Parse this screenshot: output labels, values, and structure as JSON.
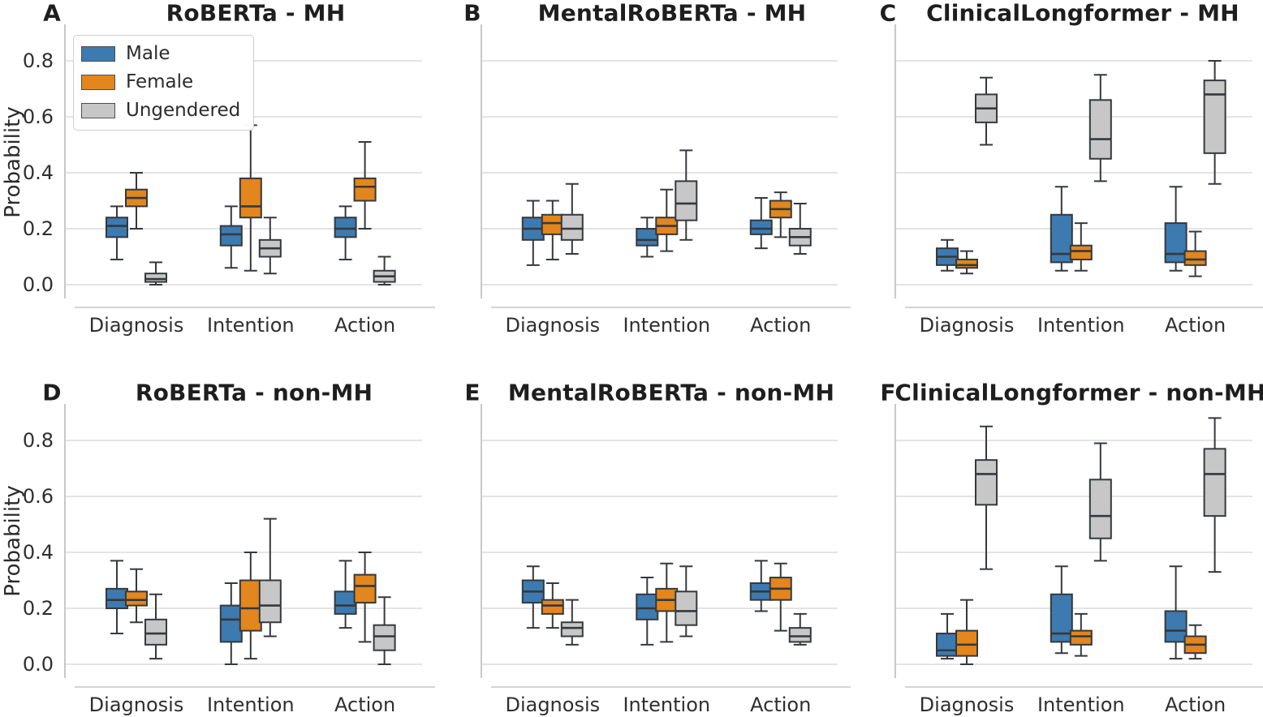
{
  "ylabel_text": "Probability",
  "legend": {
    "items": [
      {
        "label": "Male",
        "color": "#3d7ab0"
      },
      {
        "label": "Female",
        "color": "#e2861d"
      },
      {
        "label": "Ungendered",
        "color": "#c7c7c7"
      }
    ]
  },
  "chart_data": {
    "type": "boxplot-grid",
    "ylabel": "Probability",
    "categories": [
      "Diagnosis",
      "Intention",
      "Action"
    ],
    "groups": [
      "Male",
      "Female",
      "Ungendered"
    ],
    "group_colors": {
      "Male": "#3d7ab0",
      "Female": "#e2861d",
      "Ungendered": "#c7c7c7"
    },
    "style": {
      "box_edge": "#35393d",
      "grid": "#dcdcdc",
      "spine": "#c8c8c8",
      "axis_line": "#d4d4d4"
    },
    "yticks": [
      0.0,
      0.2,
      0.4,
      0.6,
      0.8
    ],
    "ytick_labels": [
      "0.0",
      "0.2",
      "0.4",
      "0.6",
      "0.8"
    ],
    "ylim": [
      -0.05,
      0.93
    ],
    "grid": true,
    "legend_position": "upper-left of panel A",
    "box_stats_format": [
      "whisker_low",
      "q1",
      "median",
      "q3",
      "whisker_high"
    ],
    "panels": [
      {
        "letter": "A",
        "title": "RoBERTa - MH",
        "show_yticklabels": true,
        "show_legend": true,
        "boxes": {
          "Diagnosis": {
            "Male": [
              0.09,
              0.17,
              0.21,
              0.24,
              0.28
            ],
            "Female": [
              0.2,
              0.28,
              0.31,
              0.34,
              0.4
            ],
            "Ungendered": [
              0.0,
              0.01,
              0.02,
              0.04,
              0.08
            ]
          },
          "Intention": {
            "Male": [
              0.06,
              0.14,
              0.18,
              0.21,
              0.28
            ],
            "Female": [
              0.05,
              0.24,
              0.28,
              0.38,
              0.57
            ],
            "Ungendered": [
              0.04,
              0.1,
              0.13,
              0.16,
              0.24
            ]
          },
          "Action": {
            "Male": [
              0.09,
              0.17,
              0.2,
              0.24,
              0.28
            ],
            "Female": [
              0.2,
              0.3,
              0.35,
              0.38,
              0.51
            ],
            "Ungendered": [
              0.0,
              0.01,
              0.03,
              0.05,
              0.1
            ]
          }
        }
      },
      {
        "letter": "B",
        "title": "MentalRoBERTa - MH",
        "show_yticklabels": false,
        "show_legend": false,
        "boxes": {
          "Diagnosis": {
            "Male": [
              0.07,
              0.16,
              0.2,
              0.24,
              0.3
            ],
            "Female": [
              0.09,
              0.18,
              0.22,
              0.25,
              0.3
            ],
            "Ungendered": [
              0.11,
              0.16,
              0.2,
              0.25,
              0.36
            ]
          },
          "Intention": {
            "Male": [
              0.1,
              0.14,
              0.16,
              0.2,
              0.24
            ],
            "Female": [
              0.12,
              0.18,
              0.21,
              0.24,
              0.34
            ],
            "Ungendered": [
              0.16,
              0.23,
              0.29,
              0.37,
              0.48
            ]
          },
          "Action": {
            "Male": [
              0.13,
              0.18,
              0.2,
              0.23,
              0.31
            ],
            "Female": [
              0.17,
              0.24,
              0.27,
              0.3,
              0.33
            ],
            "Ungendered": [
              0.11,
              0.14,
              0.17,
              0.2,
              0.29
            ]
          }
        }
      },
      {
        "letter": "C",
        "title": "ClinicalLongformer - MH",
        "show_yticklabels": false,
        "show_legend": false,
        "boxes": {
          "Diagnosis": {
            "Male": [
              0.05,
              0.07,
              0.1,
              0.13,
              0.16
            ],
            "Female": [
              0.04,
              0.06,
              0.07,
              0.09,
              0.12
            ],
            "Ungendered": [
              0.5,
              0.58,
              0.63,
              0.68,
              0.74
            ]
          },
          "Intention": {
            "Male": [
              0.05,
              0.08,
              0.11,
              0.25,
              0.35
            ],
            "Female": [
              0.05,
              0.09,
              0.12,
              0.14,
              0.22
            ],
            "Ungendered": [
              0.37,
              0.45,
              0.52,
              0.66,
              0.75
            ]
          },
          "Action": {
            "Male": [
              0.05,
              0.08,
              0.11,
              0.22,
              0.35
            ],
            "Female": [
              0.03,
              0.07,
              0.09,
              0.12,
              0.19
            ],
            "Ungendered": [
              0.36,
              0.47,
              0.68,
              0.73,
              0.8
            ]
          }
        }
      },
      {
        "letter": "D",
        "title": "RoBERTa - non-MH",
        "show_yticklabels": true,
        "show_legend": false,
        "boxes": {
          "Diagnosis": {
            "Male": [
              0.11,
              0.2,
              0.23,
              0.27,
              0.37
            ],
            "Female": [
              0.15,
              0.21,
              0.23,
              0.26,
              0.34
            ],
            "Ungendered": [
              0.02,
              0.07,
              0.11,
              0.16,
              0.25
            ]
          },
          "Intention": {
            "Male": [
              0.0,
              0.08,
              0.16,
              0.21,
              0.29
            ],
            "Female": [
              0.02,
              0.12,
              0.2,
              0.3,
              0.4
            ],
            "Ungendered": [
              0.1,
              0.15,
              0.21,
              0.3,
              0.52
            ]
          },
          "Action": {
            "Male": [
              0.13,
              0.18,
              0.21,
              0.26,
              0.37
            ],
            "Female": [
              0.08,
              0.22,
              0.28,
              0.32,
              0.4
            ],
            "Ungendered": [
              0.0,
              0.05,
              0.1,
              0.14,
              0.24
            ]
          }
        }
      },
      {
        "letter": "E",
        "title": "MentalRoBERTa - non-MH",
        "show_yticklabels": false,
        "show_legend": false,
        "boxes": {
          "Diagnosis": {
            "Male": [
              0.13,
              0.22,
              0.26,
              0.3,
              0.35
            ],
            "Female": [
              0.13,
              0.18,
              0.21,
              0.23,
              0.29
            ],
            "Ungendered": [
              0.07,
              0.1,
              0.13,
              0.15,
              0.23
            ]
          },
          "Intention": {
            "Male": [
              0.07,
              0.16,
              0.2,
              0.25,
              0.31
            ],
            "Female": [
              0.08,
              0.19,
              0.23,
              0.27,
              0.36
            ],
            "Ungendered": [
              0.1,
              0.14,
              0.19,
              0.26,
              0.35
            ]
          },
          "Action": {
            "Male": [
              0.19,
              0.23,
              0.26,
              0.29,
              0.37
            ],
            "Female": [
              0.12,
              0.23,
              0.27,
              0.31,
              0.36
            ],
            "Ungendered": [
              0.07,
              0.08,
              0.1,
              0.13,
              0.18
            ]
          }
        }
      },
      {
        "letter": "F",
        "title": "ClinicalLongformer - non-MH",
        "show_yticklabels": false,
        "show_legend": false,
        "boxes": {
          "Diagnosis": {
            "Male": [
              0.02,
              0.03,
              0.05,
              0.11,
              0.18
            ],
            "Female": [
              0.0,
              0.03,
              0.07,
              0.12,
              0.23
            ],
            "Ungendered": [
              0.34,
              0.57,
              0.68,
              0.73,
              0.85
            ]
          },
          "Intention": {
            "Male": [
              0.04,
              0.08,
              0.11,
              0.25,
              0.35
            ],
            "Female": [
              0.03,
              0.07,
              0.1,
              0.12,
              0.18
            ],
            "Ungendered": [
              0.37,
              0.45,
              0.53,
              0.66,
              0.79
            ]
          },
          "Action": {
            "Male": [
              0.02,
              0.08,
              0.12,
              0.19,
              0.35
            ],
            "Female": [
              0.02,
              0.04,
              0.07,
              0.1,
              0.14
            ],
            "Ungendered": [
              0.33,
              0.53,
              0.68,
              0.77,
              0.88
            ]
          }
        }
      }
    ]
  }
}
